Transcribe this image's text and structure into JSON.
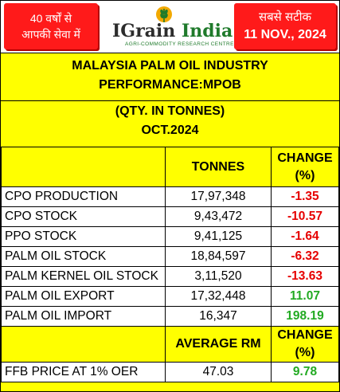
{
  "header": {
    "left_tag": [
      "40 वर्षों से",
      "आपकी सेवा में"
    ],
    "logo": {
      "brand_prefix": "IGrain",
      "brand_suffix": " India",
      "subtitle": "AGRI-COMMODITY RESEARCH CENTRE",
      "icon": "wheat-icon"
    },
    "right_tag": [
      "सबसे सटीक",
      "11 NOV., 2024"
    ]
  },
  "title": {
    "line1": "MALAYSIA PALM OIL INDUSTRY",
    "line2": "PERFORMANCE:MPOB",
    "line3": "(QTY. IN TONNES)",
    "line4": "OCT.2024"
  },
  "table": {
    "col_tonnes": "TONNES",
    "col_change": [
      "CHANGE",
      "(%)"
    ],
    "rows": [
      {
        "label": "CPO PRODUCTION",
        "tonnes": "17,97,348",
        "change": "-1.35"
      },
      {
        "label": "CPO STOCK",
        "tonnes": "9,43,472",
        "change": "-10.57"
      },
      {
        "label": "PPO STOCK",
        "tonnes": "9,41,125",
        "change": "-1.64"
      },
      {
        "label": "PALM OIL STOCK",
        "tonnes": "18,84,597",
        "change": "-6.32"
      },
      {
        "label": "PALM KERNEL OIL STOCK",
        "tonnes": "3,11,520",
        "change": "-13.63"
      },
      {
        "label": "PALM OIL EXPORT",
        "tonnes": "17,32,448",
        "change": "11.07"
      },
      {
        "label": "PALM OIL IMPORT",
        "tonnes": "16,347",
        "change": "198.19"
      }
    ],
    "col_avg": "AVERAGE RM",
    "col_change2": [
      "CHANGE",
      "(%)"
    ],
    "ffb": {
      "label": "FFB PRICE AT 1% OER",
      "value": "47.03",
      "change": "9.78"
    }
  },
  "colors": {
    "background": "#ffff00",
    "tag": "#ff1a1a",
    "negative": "#e60000",
    "positive": "#22aa22",
    "brand_green": "#1f7a2b"
  }
}
